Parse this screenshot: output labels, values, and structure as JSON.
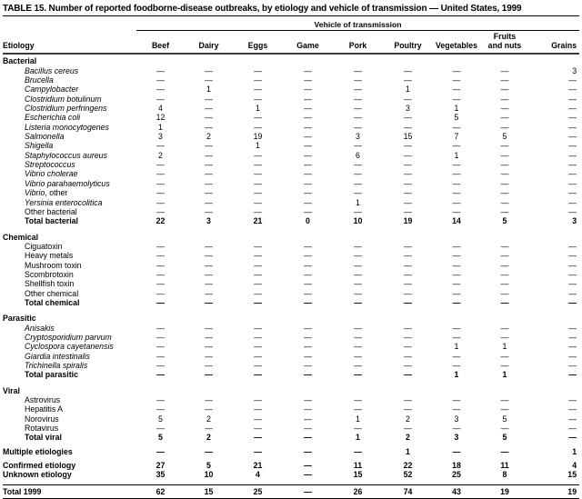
{
  "title": "TABLE 15. Number of reported foodborne-disease outbreaks, by etiology and vehicle of transmission — United States, 1999",
  "table": {
    "group_header": "Vehicle of transmission",
    "stub_header": "Etiology",
    "columns": [
      "Beef",
      "Dairy",
      "Eggs",
      "Game",
      "Pork",
      "Poultry",
      "Vegetables",
      "Fruits\nand nuts",
      "Grains"
    ],
    "sections": [
      {
        "name": "Bacterial",
        "rows": [
          {
            "label": "Bacillus cereus",
            "italic": true,
            "values": [
              "—",
              "—",
              "—",
              "—",
              "—",
              "—",
              "—",
              "—",
              "3"
            ]
          },
          {
            "label": "Brucella",
            "italic": true,
            "values": [
              "—",
              "—",
              "—",
              "—",
              "—",
              "—",
              "—",
              "—",
              "—"
            ]
          },
          {
            "label": "Campylobacter",
            "italic": true,
            "values": [
              "—",
              "1",
              "—",
              "—",
              "—",
              "1",
              "—",
              "—",
              "—"
            ]
          },
          {
            "label": "Clostridium botulinum",
            "italic": true,
            "values": [
              "—",
              "—",
              "—",
              "—",
              "—",
              "—",
              "—",
              "—",
              "—"
            ]
          },
          {
            "label": "Clostridium perfringens",
            "italic": true,
            "values": [
              "4",
              "—",
              "1",
              "—",
              "—",
              "3",
              "1",
              "—",
              "—"
            ]
          },
          {
            "label": "Escherichia coli",
            "italic": true,
            "values": [
              "12",
              "—",
              "—",
              "—",
              "—",
              "—",
              "5",
              "—",
              "—"
            ]
          },
          {
            "label": "Listeria monocytogenes",
            "italic": true,
            "values": [
              "1",
              "—",
              "—",
              "—",
              "—",
              "—",
              "—",
              "—",
              "—"
            ]
          },
          {
            "label": "Salmonella",
            "italic": true,
            "values": [
              "3",
              "2",
              "19",
              "—",
              "3",
              "15",
              "7",
              "5",
              "—"
            ]
          },
          {
            "label": "Shigella",
            "italic": true,
            "values": [
              "—",
              "—",
              "1",
              "—",
              "—",
              "—",
              "—",
              "—",
              "—"
            ]
          },
          {
            "label": "Staphylococcus aureus",
            "italic": true,
            "values": [
              "2",
              "—",
              "—",
              "—",
              "6",
              "—",
              "1",
              "—",
              "—"
            ]
          },
          {
            "label": "Streptococcus",
            "italic": true,
            "values": [
              "—",
              "—",
              "—",
              "—",
              "—",
              "—",
              "—",
              "—",
              "—"
            ]
          },
          {
            "label": "Vibrio cholerae",
            "italic": true,
            "values": [
              "—",
              "—",
              "—",
              "—",
              "—",
              "—",
              "—",
              "—",
              "—"
            ]
          },
          {
            "label": "Vibrio parahaemolyticus",
            "italic": true,
            "values": [
              "—",
              "—",
              "—",
              "—",
              "—",
              "—",
              "—",
              "—",
              "—"
            ]
          },
          {
            "label": "Vibrio",
            "label_suffix": ", other",
            "italic": true,
            "values": [
              "—",
              "—",
              "—",
              "—",
              "—",
              "—",
              "—",
              "—",
              "—"
            ]
          },
          {
            "label": "Yersinia enterocolitica",
            "italic": true,
            "values": [
              "—",
              "—",
              "—",
              "—",
              "1",
              "—",
              "—",
              "—",
              "—"
            ]
          },
          {
            "label": "Other bacterial",
            "italic": false,
            "values": [
              "—",
              "—",
              "—",
              "—",
              "—",
              "—",
              "—",
              "—",
              "—"
            ]
          },
          {
            "label": "Total bacterial",
            "bold": true,
            "values": [
              "22",
              "3",
              "21",
              "0",
              "10",
              "19",
              "14",
              "5",
              "3"
            ]
          }
        ]
      },
      {
        "name": "Chemical",
        "rows": [
          {
            "label": "Ciguatoxin",
            "values": [
              "—",
              "—",
              "—",
              "—",
              "—",
              "—",
              "—",
              "—",
              "—"
            ]
          },
          {
            "label": "Heavy metals",
            "values": [
              "—",
              "—",
              "—",
              "—",
              "—",
              "—",
              "—",
              "—",
              "—"
            ]
          },
          {
            "label": "Mushroom toxin",
            "values": [
              "—",
              "—",
              "—",
              "—",
              "—",
              "—",
              "—",
              "—",
              "—"
            ]
          },
          {
            "label": "Scombrotoxin",
            "values": [
              "—",
              "—",
              "—",
              "—",
              "—",
              "—",
              "—",
              "—",
              "—"
            ]
          },
          {
            "label": "Shellfish toxin",
            "values": [
              "—",
              "—",
              "—",
              "—",
              "—",
              "—",
              "—",
              "—",
              "—"
            ]
          },
          {
            "label": "Other chemical",
            "values": [
              "—",
              "—",
              "—",
              "—",
              "—",
              "—",
              "—",
              "—",
              "—"
            ]
          },
          {
            "label": "Total chemical",
            "bold": true,
            "values": [
              "—",
              "—",
              "—",
              "—",
              "—",
              "—",
              "—",
              "—",
              "—"
            ]
          }
        ]
      },
      {
        "name": "Parasitic",
        "rows": [
          {
            "label": "Anisakis",
            "italic": true,
            "values": [
              "—",
              "—",
              "—",
              "—",
              "—",
              "—",
              "—",
              "—",
              "—"
            ]
          },
          {
            "label": "Cryptosporidium parvum",
            "italic": true,
            "values": [
              "—",
              "—",
              "—",
              "—",
              "—",
              "—",
              "—",
              "—",
              "—"
            ]
          },
          {
            "label": "Cyclospora cayetanensis",
            "italic": true,
            "values": [
              "—",
              "—",
              "—",
              "—",
              "—",
              "—",
              "1",
              "1",
              "—"
            ]
          },
          {
            "label": "Giardia intestinalis",
            "italic": true,
            "values": [
              "—",
              "—",
              "—",
              "—",
              "—",
              "—",
              "—",
              "—",
              "—"
            ]
          },
          {
            "label": "Trichinella spiralis",
            "italic": true,
            "values": [
              "—",
              "—",
              "—",
              "—",
              "—",
              "—",
              "—",
              "—",
              "—"
            ]
          },
          {
            "label": "Total parasitic",
            "bold": true,
            "values": [
              "—",
              "—",
              "—",
              "—",
              "—",
              "—",
              "1",
              "1",
              "—"
            ]
          }
        ]
      },
      {
        "name": "Viral",
        "rows": [
          {
            "label": "Astrovirus",
            "values": [
              "—",
              "—",
              "—",
              "—",
              "—",
              "—",
              "—",
              "—",
              "—"
            ]
          },
          {
            "label": "Hepatitis A",
            "values": [
              "—",
              "—",
              "—",
              "—",
              "—",
              "—",
              "—",
              "—",
              "—"
            ]
          },
          {
            "label": "Norovirus",
            "values": [
              "5",
              "2",
              "—",
              "—",
              "1",
              "2",
              "3",
              "5",
              "—"
            ]
          },
          {
            "label": "Rotavirus",
            "values": [
              "—",
              "—",
              "—",
              "—",
              "—",
              "—",
              "—",
              "—",
              "—"
            ]
          },
          {
            "label": "Total viral",
            "bold": true,
            "values": [
              "5",
              "2",
              "—",
              "—",
              "1",
              "2",
              "3",
              "5",
              "—"
            ]
          }
        ]
      }
    ],
    "summary_rows": [
      {
        "label": "Multiple etiologies",
        "bold": true,
        "gap_before": true,
        "values": [
          "—",
          "—",
          "—",
          "—",
          "—",
          "1",
          "—",
          "—",
          "1"
        ]
      },
      {
        "label": "Confirmed etiology",
        "bold": true,
        "gap_before": true,
        "values": [
          "27",
          "5",
          "21",
          "—",
          "11",
          "22",
          "18",
          "11",
          "4"
        ]
      },
      {
        "label": "Unknown etiology",
        "bold": true,
        "values": [
          "35",
          "10",
          "4",
          "—",
          "15",
          "52",
          "25",
          "8",
          "15"
        ]
      },
      {
        "label": "Total 1999",
        "bold": true,
        "grand": true,
        "gap_before": true,
        "values": [
          "62",
          "15",
          "25",
          "—",
          "26",
          "74",
          "43",
          "19",
          "19"
        ]
      }
    ]
  }
}
